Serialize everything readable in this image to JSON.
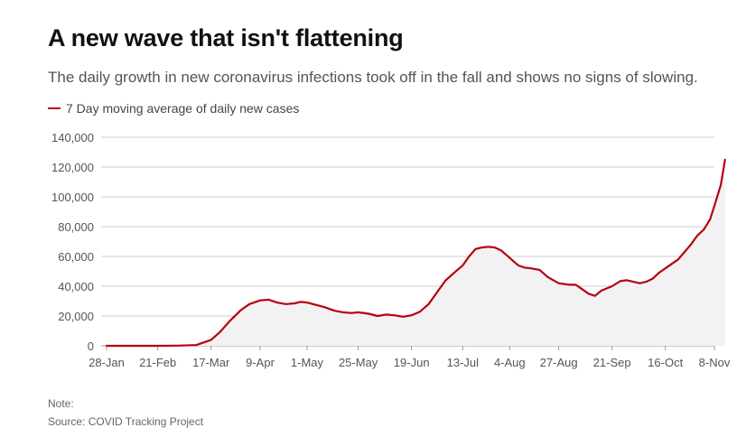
{
  "title": "A new wave that isn't flattening",
  "subtitle": "The daily growth in new coronavirus infections took off in the fall and shows no signs of slowing.",
  "note": "Note:",
  "source": "Source: COVID Tracking Project",
  "colors": {
    "line": "#b5000f",
    "area": "#f2f2f2",
    "grid": "#cccccc",
    "axis": "#999999"
  },
  "chart_data": {
    "type": "area",
    "ylim": [
      0,
      140000
    ],
    "yticks": [
      0,
      20000,
      40000,
      60000,
      80000,
      100000,
      120000,
      140000
    ],
    "ytick_labels": [
      "0",
      "20,000",
      "40,000",
      "60,000",
      "80,000",
      "100,000",
      "120,000",
      "140,000"
    ],
    "xtick_labels": [
      "28-Jan",
      "21-Feb",
      "17-Mar",
      "9-Apr",
      "1-May",
      "25-May",
      "19-Jun",
      "13-Jul",
      "4-Aug",
      "27-Aug",
      "21-Sep",
      "16-Oct",
      "8-Nov"
    ],
    "xtick_dates": [
      "2020-01-28",
      "2020-02-21",
      "2020-03-17",
      "2020-04-09",
      "2020-05-01",
      "2020-05-25",
      "2020-06-19",
      "2020-07-13",
      "2020-08-04",
      "2020-08-27",
      "2020-09-21",
      "2020-10-16",
      "2020-11-08"
    ],
    "grid": true,
    "series": [
      {
        "name": "7 Day moving average of daily new cases",
        "x": [
          "2020-01-28",
          "2020-02-21",
          "2020-03-01",
          "2020-03-10",
          "2020-03-17",
          "2020-03-21",
          "2020-03-26",
          "2020-03-31",
          "2020-04-04",
          "2020-04-09",
          "2020-04-13",
          "2020-04-17",
          "2020-04-21",
          "2020-04-25",
          "2020-04-28",
          "2020-05-01",
          "2020-05-05",
          "2020-05-09",
          "2020-05-14",
          "2020-05-18",
          "2020-05-22",
          "2020-05-25",
          "2020-05-30",
          "2020-06-03",
          "2020-06-07",
          "2020-06-11",
          "2020-06-15",
          "2020-06-19",
          "2020-06-23",
          "2020-06-27",
          "2020-07-01",
          "2020-07-05",
          "2020-07-09",
          "2020-07-13",
          "2020-07-16",
          "2020-07-19",
          "2020-07-22",
          "2020-07-25",
          "2020-07-28",
          "2020-07-31",
          "2020-08-04",
          "2020-08-08",
          "2020-08-11",
          "2020-08-14",
          "2020-08-18",
          "2020-08-22",
          "2020-08-27",
          "2020-09-01",
          "2020-09-04",
          "2020-09-07",
          "2020-09-10",
          "2020-09-13",
          "2020-09-16",
          "2020-09-21",
          "2020-09-25",
          "2020-09-28",
          "2020-10-01",
          "2020-10-04",
          "2020-10-07",
          "2020-10-10",
          "2020-10-13",
          "2020-10-16",
          "2020-10-19",
          "2020-10-22",
          "2020-10-25",
          "2020-10-28",
          "2020-10-31",
          "2020-11-03",
          "2020-11-06",
          "2020-11-08",
          "2020-11-11",
          "2020-11-13"
        ],
        "y": [
          0,
          0,
          100,
          500,
          4000,
          9000,
          17000,
          24000,
          28000,
          30500,
          31000,
          29000,
          28000,
          28500,
          29500,
          29000,
          27500,
          26000,
          23500,
          22500,
          22000,
          22500,
          21500,
          20000,
          21000,
          20500,
          19500,
          20500,
          23000,
          28000,
          36000,
          44000,
          49000,
          54000,
          60000,
          65000,
          66000,
          66500,
          66000,
          64000,
          59000,
          54000,
          52500,
          52000,
          51000,
          46000,
          42000,
          41000,
          41000,
          38000,
          35000,
          33500,
          37000,
          40000,
          43500,
          44000,
          43000,
          42000,
          43000,
          45000,
          49000,
          52000,
          55000,
          58000,
          63000,
          68000,
          74000,
          78000,
          85000,
          94000,
          108000,
          125000
        ]
      }
    ]
  }
}
